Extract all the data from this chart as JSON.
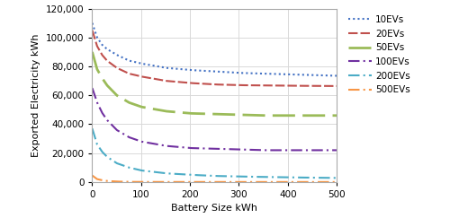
{
  "title": "",
  "xlabel": "Battery Size kWh",
  "ylabel": "Exported Electricity kWh",
  "xlim": [
    0,
    500
  ],
  "ylim": [
    0,
    120000
  ],
  "yticks": [
    0,
    20000,
    40000,
    60000,
    80000,
    100000,
    120000
  ],
  "xticks": [
    0,
    100,
    200,
    300,
    400,
    500
  ],
  "series": [
    {
      "label": "10EVs",
      "color": "#4472C4",
      "linestyle": "dotted",
      "linewidth": 1.5,
      "x": [
        0,
        10,
        20,
        30,
        50,
        75,
        100,
        150,
        200,
        250,
        300,
        350,
        400,
        450,
        500
      ],
      "y": [
        110000,
        100000,
        95000,
        92000,
        88000,
        84000,
        82000,
        79000,
        77500,
        76500,
        75500,
        75000,
        74500,
        74000,
        73500
      ]
    },
    {
      "label": "20EVs",
      "color": "#C0504D",
      "linestyle": "dashed_dense",
      "linewidth": 1.5,
      "x": [
        0,
        10,
        20,
        30,
        50,
        75,
        100,
        150,
        200,
        250,
        300,
        350,
        400,
        450,
        500
      ],
      "y": [
        105000,
        94000,
        88000,
        84000,
        79000,
        75000,
        73000,
        70000,
        68500,
        67500,
        67000,
        66800,
        66600,
        66500,
        66400
      ]
    },
    {
      "label": "50EVs",
      "color": "#9BBB59",
      "linestyle": "dashed_long",
      "linewidth": 2.0,
      "x": [
        0,
        10,
        20,
        30,
        50,
        75,
        100,
        150,
        200,
        250,
        300,
        350,
        400,
        450,
        500
      ],
      "y": [
        90000,
        78000,
        72000,
        67000,
        60000,
        55000,
        52000,
        49000,
        47500,
        47000,
        46500,
        46000,
        46000,
        46000,
        46000
      ]
    },
    {
      "label": "100EVs",
      "color": "#7030A0",
      "linestyle": "dashdot",
      "linewidth": 1.5,
      "x": [
        0,
        10,
        20,
        30,
        50,
        75,
        100,
        150,
        200,
        250,
        300,
        350,
        400,
        450,
        500
      ],
      "y": [
        65000,
        55000,
        48000,
        43000,
        36000,
        31000,
        28000,
        25000,
        23500,
        23000,
        22500,
        22000,
        22000,
        22000,
        22000
      ]
    },
    {
      "label": "200EVs",
      "color": "#4BACC6",
      "linestyle": "dashdot",
      "linewidth": 1.5,
      "x": [
        0,
        10,
        20,
        30,
        50,
        75,
        100,
        150,
        200,
        250,
        300,
        350,
        400,
        450,
        500
      ],
      "y": [
        37000,
        26000,
        21000,
        17500,
        13000,
        10000,
        8000,
        6000,
        5000,
        4200,
        3800,
        3500,
        3200,
        3000,
        2800
      ]
    },
    {
      "label": "500EVs",
      "color": "#F79646",
      "linestyle": "dashdot",
      "linewidth": 1.5,
      "x": [
        0,
        10,
        20,
        30,
        50,
        75,
        100,
        150,
        200,
        250,
        300,
        350,
        400,
        450,
        500
      ],
      "y": [
        4500,
        2000,
        1200,
        700,
        300,
        100,
        50,
        20,
        10,
        5,
        3,
        2,
        1,
        1,
        0
      ]
    }
  ],
  "grid_color": "#D9D9D9",
  "background_color": "#FFFFFF",
  "legend_fontsize": 7.5,
  "axis_fontsize": 8,
  "tick_fontsize": 7.5
}
